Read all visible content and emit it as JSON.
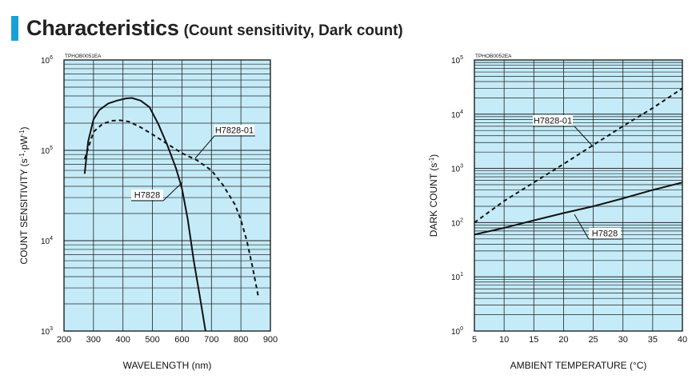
{
  "header": {
    "title": "Characteristics",
    "subtitle": "(Count sensitivity, Dark count)",
    "accent_color": "#1aa0d8"
  },
  "chart_data": [
    {
      "type": "line",
      "code": "TPHOB0051EA",
      "xlabel": "WAVELENGTH (nm)",
      "ylabel": "COUNT SENSITIVITY (s-1·pW-1)",
      "xlim": [
        200,
        900
      ],
      "ylim": [
        1000,
        1000000
      ],
      "yscale": "log",
      "x_ticks": [
        "200",
        "300",
        "400",
        "500",
        "600",
        "700",
        "800",
        "900"
      ],
      "y_tick_exponents": [
        "3",
        "4",
        "5",
        "6"
      ],
      "grid": true,
      "plot_bg": "#c5ebf8",
      "series": [
        {
          "name": "H7828",
          "style": "solid",
          "points": [
            [
              270,
              55000
            ],
            [
              282,
              125000
            ],
            [
              300,
              220000
            ],
            [
              320,
              280000
            ],
            [
              350,
              330000
            ],
            [
              380,
              355000
            ],
            [
              410,
              375000
            ],
            [
              430,
              380000
            ],
            [
              460,
              355000
            ],
            [
              490,
              300000
            ],
            [
              520,
              195000
            ],
            [
              550,
              115000
            ],
            [
              580,
              63000
            ],
            [
              600,
              38000
            ],
            [
              620,
              17000
            ],
            [
              640,
              6000
            ],
            [
              660,
              2500
            ],
            [
              680,
              1000
            ]
          ]
        },
        {
          "name": "H7828-01",
          "style": "dashed",
          "points": [
            [
              270,
              80000
            ],
            [
              300,
              160000
            ],
            [
              330,
              195000
            ],
            [
              360,
              212000
            ],
            [
              390,
              215000
            ],
            [
              420,
              208000
            ],
            [
              460,
              180000
            ],
            [
              500,
              150000
            ],
            [
              550,
              118000
            ],
            [
              600,
              93000
            ],
            [
              650,
              78000
            ],
            [
              700,
              60000
            ],
            [
              740,
              41000
            ],
            [
              780,
              25000
            ],
            [
              800,
              17000
            ],
            [
              820,
              10000
            ],
            [
              840,
              5000
            ],
            [
              860,
              2300
            ]
          ]
        }
      ]
    },
    {
      "type": "line",
      "code": "TPHOB0052EA",
      "xlabel": "AMBIENT TEMPERATURE (°C)",
      "ylabel": "DARK COUNT (s-1)",
      "xlim": [
        5,
        40
      ],
      "ylim": [
        1,
        100000
      ],
      "yscale": "log",
      "x_ticks": [
        "5",
        "10",
        "15",
        "20",
        "25",
        "30",
        "35",
        "40"
      ],
      "y_tick_exponents": [
        "0",
        "1",
        "2",
        "3",
        "4",
        "5"
      ],
      "grid": true,
      "plot_bg": "#c5ebf8",
      "series": [
        {
          "name": "H7828",
          "style": "solid",
          "points": [
            [
              5,
              60
            ],
            [
              10,
              80
            ],
            [
              15,
              110
            ],
            [
              20,
              150
            ],
            [
              25,
              200
            ],
            [
              30,
              280
            ],
            [
              35,
              400
            ],
            [
              40,
              550
            ]
          ]
        },
        {
          "name": "H7828-01",
          "style": "dashed",
          "points": [
            [
              5,
              100
            ],
            [
              10,
              250
            ],
            [
              15,
              550
            ],
            [
              20,
              1200
            ],
            [
              25,
              2700
            ],
            [
              30,
              6000
            ],
            [
              35,
              13000
            ],
            [
              40,
              30000
            ]
          ]
        }
      ]
    }
  ]
}
